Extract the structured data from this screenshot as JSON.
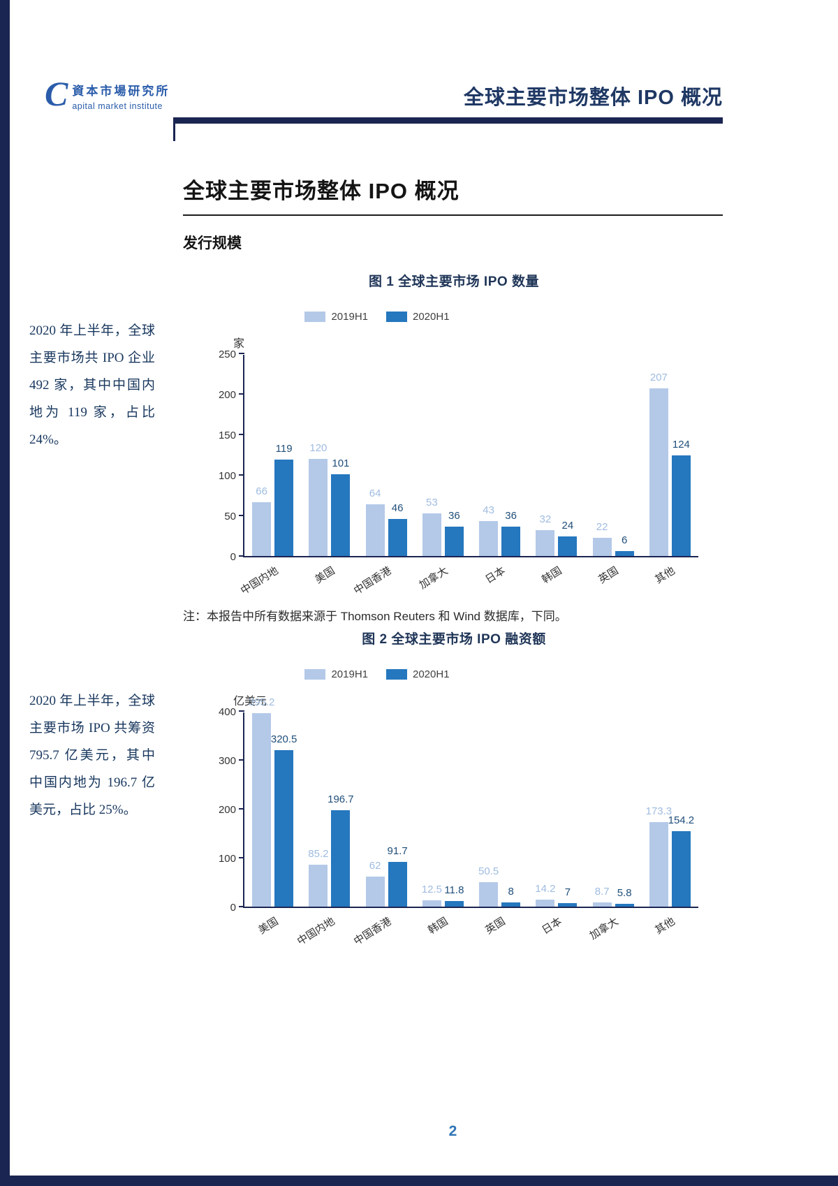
{
  "header": {
    "logo_mark": "C",
    "logo_text": "資本市場研究所",
    "logo_subtext": "apital market institute",
    "title": "全球主要市场整体 IPO 概况"
  },
  "main": {
    "title": "全球主要市场整体 IPO 概况",
    "section_heading": "发行规模",
    "sidebar_text_1": "2020 年上半年，全球主要市场共 IPO 企业 492 家，其中中国内地为 119 家，占比 24%。",
    "sidebar_text_2": "2020 年上半年，全球主要市场 IPO 共筹资 795.7 亿美元，其中中国内地为 196.7 亿美元，占比 25%。",
    "note": "注：本报告中所有数据来源于 Thomson Reuters 和 Wind 数据库，下同。"
  },
  "page": {
    "number": "2"
  },
  "colors": {
    "accent_navy": "#1b2551",
    "series_2019": "#b4c9e8",
    "series_2020": "#2577be",
    "label_2019": "#9fbce0",
    "label_2020": "#1f4e79",
    "header_title_blue": "#1f3864",
    "sidebar_text_blue": "#17365d",
    "page_number_blue": "#2e74b5",
    "logo_blue": "#2a5caa"
  },
  "chart_data": [
    {
      "type": "bar",
      "title": "图 1  全球主要市场 IPO 数量",
      "unit": "家",
      "categories": [
        "中国内地",
        "美国",
        "中国香港",
        "加拿大",
        "日本",
        "韩国",
        "英国",
        "其他"
      ],
      "series": [
        {
          "name": "2019H1",
          "values": [
            66,
            120,
            64,
            53,
            43,
            32,
            22,
            207
          ]
        },
        {
          "name": "2020H1",
          "values": [
            119,
            101,
            46,
            36,
            36,
            24,
            6,
            124
          ]
        }
      ],
      "ylim": [
        0,
        250
      ],
      "yticks": [
        0,
        50,
        100,
        150,
        200,
        250
      ],
      "legend_position": "top",
      "grid": false
    },
    {
      "type": "bar",
      "title": "图 2  全球主要市场 IPO 融资额",
      "unit": "亿美元",
      "categories": [
        "美国",
        "中国内地",
        "中国香港",
        "韩国",
        "英国",
        "日本",
        "加拿大",
        "其他"
      ],
      "series": [
        {
          "name": "2019H1",
          "values": [
            395.2,
            85.2,
            62,
            12.5,
            50.5,
            14.2,
            8.7,
            173.3
          ]
        },
        {
          "name": "2020H1",
          "values": [
            320.5,
            196.7,
            91.7,
            11.8,
            8,
            7,
            5.8,
            154.2
          ]
        }
      ],
      "ylim": [
        0,
        400
      ],
      "yticks": [
        0,
        100,
        200,
        300,
        400
      ],
      "legend_position": "top",
      "grid": false
    }
  ]
}
